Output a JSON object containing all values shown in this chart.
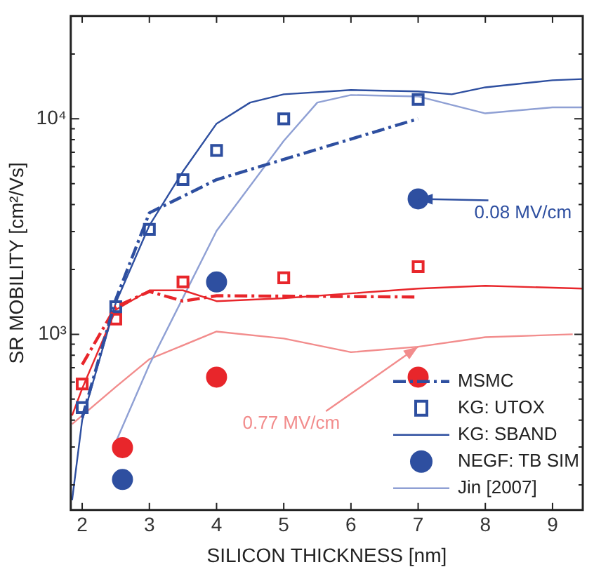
{
  "chart_data": {
    "type": "line",
    "xlabel": "SILICON THICKNESS [nm]",
    "ylabel": "SR MOBILITY [cm²/Vs]",
    "xlim": [
      1.83,
      9.45
    ],
    "xticks": [
      2,
      3,
      4,
      5,
      6,
      7,
      8,
      9
    ],
    "ylim": [
      153,
      30000
    ],
    "yticks": [
      {
        "value": 200,
        "label": null
      },
      {
        "value": 300,
        "label": null
      },
      {
        "value": 400,
        "label": null
      },
      {
        "value": 500,
        "label": null
      },
      {
        "value": 600,
        "label": null
      },
      {
        "value": 700,
        "label": null
      },
      {
        "value": 800,
        "label": null
      },
      {
        "value": 900,
        "label": null
      },
      {
        "value": 1000,
        "label": "10³"
      },
      {
        "value": 2000,
        "label": null
      },
      {
        "value": 3000,
        "label": null
      },
      {
        "value": 4000,
        "label": null
      },
      {
        "value": 5000,
        "label": null
      },
      {
        "value": 6000,
        "label": null
      },
      {
        "value": 7000,
        "label": null
      },
      {
        "value": 8000,
        "label": null
      },
      {
        "value": 9000,
        "label": null
      },
      {
        "value": 10000,
        "label": "10⁴"
      },
      {
        "value": 20000,
        "label": null
      }
    ],
    "log": "y",
    "grid": false,
    "legend": "bottom right",
    "series": [
      {
        "name": "MSMC",
        "type": "line",
        "line_style": "dashed",
        "color": "#2e4fa0",
        "x": [
          2,
          2.5,
          3,
          4,
          7
        ],
        "values": [
          410,
          1450,
          3660,
          5220,
          10000
        ]
      },
      {
        "type": "line",
        "line_style": "dashed",
        "color": "#e8262b",
        "x": [
          2,
          2.5,
          3,
          3.5,
          4,
          7
        ],
        "values": [
          723,
          1343,
          1580,
          1425,
          1510,
          1490
        ]
      },
      {
        "name": "KG: UTOX",
        "type": "scatter",
        "marker": "square",
        "color": "#2e4fa0",
        "x": [
          2,
          2.5,
          3,
          3.5,
          4,
          5,
          7
        ],
        "values": [
          457,
          1343,
          3070,
          5220,
          7130,
          10000,
          12300
        ]
      },
      {
        "type": "scatter",
        "marker": "square",
        "color": "#e8262b",
        "x": [
          2,
          2.5,
          3.5,
          5,
          7
        ],
        "values": [
          588,
          1176,
          1750,
          1830,
          2060
        ]
      },
      {
        "name": "KG: SBAND",
        "type": "line",
        "line_style": "solid",
        "color": "#2e4fa0",
        "x": [
          1.85,
          2,
          2.5,
          3,
          3.5,
          4,
          4.5,
          5,
          6,
          7,
          7.5,
          8,
          9,
          9.45
        ],
        "values": [
          170,
          400,
          1400,
          3200,
          5700,
          9500,
          11900,
          13000,
          13600,
          13400,
          13000,
          14000,
          15100,
          15300
        ]
      },
      {
        "type": "line",
        "line_style": "solid",
        "color": "#e8262b",
        "x": [
          1.85,
          2,
          2.5,
          3,
          3.5,
          4,
          5,
          7,
          8,
          9.45
        ],
        "values": [
          420,
          560,
          1300,
          1600,
          1600,
          1425,
          1470,
          1630,
          1680,
          1630
        ]
      },
      {
        "name": "NEGF: TB SIM",
        "type": "scatter",
        "marker": "circle",
        "color": "#2e4fa0",
        "x": [
          2.6,
          4,
          7
        ],
        "values": [
          212,
          1750,
          4250
        ]
      },
      {
        "type": "scatter",
        "marker": "circle",
        "color": "#e8262b",
        "x": [
          2.6,
          4,
          7
        ],
        "values": [
          298,
          633,
          633
        ]
      },
      {
        "name": "Jin [2007]",
        "type": "line",
        "line_style": "solid",
        "color": "#8fa0d4",
        "x": [
          2.5,
          3,
          4,
          5,
          5.5,
          6,
          7,
          8,
          9,
          9.45
        ],
        "values": [
          316,
          723,
          3020,
          7900,
          11900,
          12900,
          12700,
          10600,
          11300,
          11300
        ]
      },
      {
        "type": "line",
        "line_style": "solid",
        "color": "#f28c8c",
        "x": [
          1.85,
          2.5,
          3,
          4,
          5,
          6,
          7,
          8,
          9.3
        ],
        "values": [
          383,
          570,
          767,
          1030,
          956,
          826,
          876,
          970,
          1000
        ]
      }
    ],
    "annotations": [
      {
        "text": "0.08 MV/cm",
        "x": 7,
        "y": 4250
      },
      {
        "text": "0.77 MV/cm",
        "x": 7,
        "y": 876
      }
    ]
  }
}
